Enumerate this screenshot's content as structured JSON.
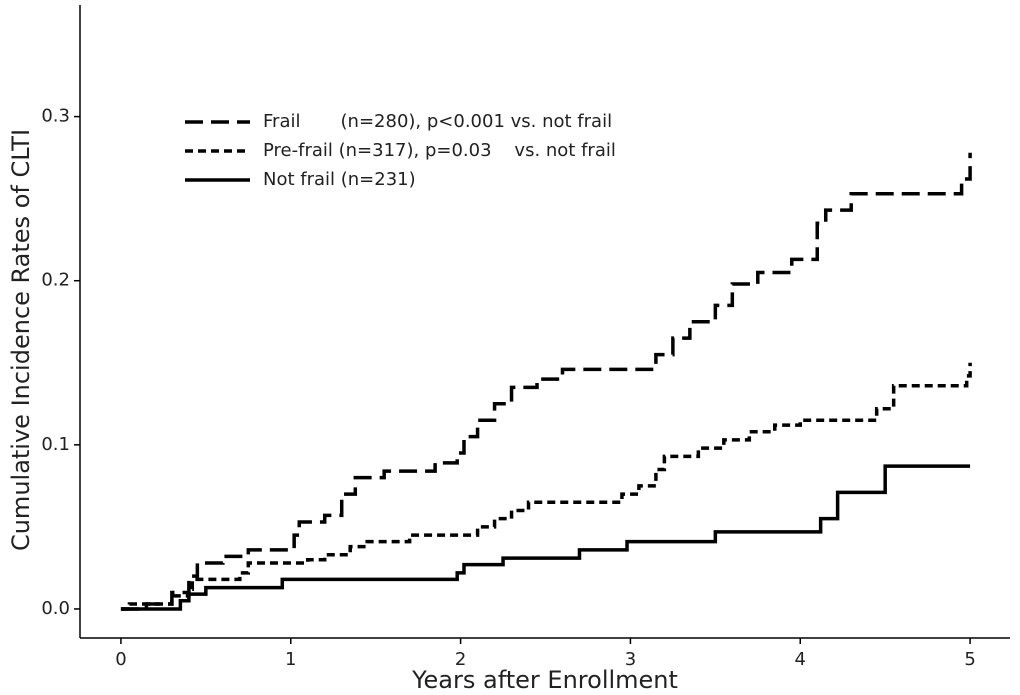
{
  "chart_data": {
    "type": "line",
    "step": true,
    "xlabel": "Years after Enrollment",
    "ylabel": "Cumulative Incidence Rates of CLTI",
    "xlim": [
      -0.241,
      5.235
    ],
    "ylim": [
      -0.0177,
      0.368
    ],
    "xticks": [
      0,
      1,
      2,
      3,
      4,
      5
    ],
    "yticks": [
      {
        "value": 0,
        "label": "0.0"
      },
      {
        "value": 0.1,
        "label": "0.1"
      },
      {
        "value": 0.2,
        "label": "0.2"
      },
      {
        "value": 0.3,
        "label": "0.3"
      }
    ],
    "grid": false,
    "legend": "upper left",
    "series": [
      {
        "name": "Frail       (n=280), p<0.001 vs. not frail",
        "color": "#000000",
        "dash": "18 8",
        "x": [
          0,
          0.15,
          0.3,
          0.4,
          0.45,
          0.6,
          0.75,
          1.02,
          1.05,
          1.2,
          1.3,
          1.38,
          1.55,
          1.85,
          1.98,
          2.02,
          2.1,
          2.2,
          2.3,
          2.45,
          2.6,
          3.15,
          3.25,
          3.35,
          3.5,
          3.6,
          3.75,
          3.95,
          4.1,
          4.15,
          4.3,
          4.95,
          5.0
        ],
        "values": [
          0,
          0.003,
          0.01,
          0.02,
          0.028,
          0.032,
          0.036,
          0.045,
          0.053,
          0.057,
          0.07,
          0.08,
          0.084,
          0.089,
          0.095,
          0.105,
          0.115,
          0.125,
          0.135,
          0.14,
          0.146,
          0.155,
          0.165,
          0.175,
          0.185,
          0.198,
          0.205,
          0.213,
          0.235,
          0.243,
          0.253,
          0.262,
          0.278
        ]
      },
      {
        "name": "Pre-frail (n=317), p=0.03    vs. not frail",
        "color": "#000000",
        "dash": "8 5",
        "x": [
          0,
          0.05,
          0.3,
          0.4,
          0.42,
          0.7,
          0.75,
          1.1,
          1.2,
          1.35,
          1.45,
          1.7,
          2.1,
          2.2,
          2.3,
          2.4,
          2.95,
          3.05,
          3.15,
          3.2,
          3.4,
          3.55,
          3.7,
          3.85,
          4.0,
          4.45,
          4.55,
          4.98,
          5.0
        ],
        "values": [
          0,
          0.003,
          0.008,
          0.012,
          0.018,
          0.022,
          0.028,
          0.03,
          0.033,
          0.038,
          0.041,
          0.045,
          0.05,
          0.055,
          0.06,
          0.065,
          0.07,
          0.075,
          0.085,
          0.093,
          0.098,
          0.103,
          0.108,
          0.112,
          0.115,
          0.122,
          0.136,
          0.142,
          0.15
        ]
      },
      {
        "name": "Not frail (n=231)",
        "color": "#000000",
        "dash": "none",
        "x": [
          0,
          0.35,
          0.4,
          0.5,
          0.95,
          1.98,
          2.02,
          2.25,
          2.7,
          2.98,
          3.5,
          4.12,
          4.22,
          4.5,
          5.0
        ],
        "values": [
          0,
          0.005,
          0.009,
          0.013,
          0.018,
          0.022,
          0.027,
          0.031,
          0.036,
          0.041,
          0.047,
          0.055,
          0.071,
          0.087,
          0.087
        ]
      }
    ]
  }
}
